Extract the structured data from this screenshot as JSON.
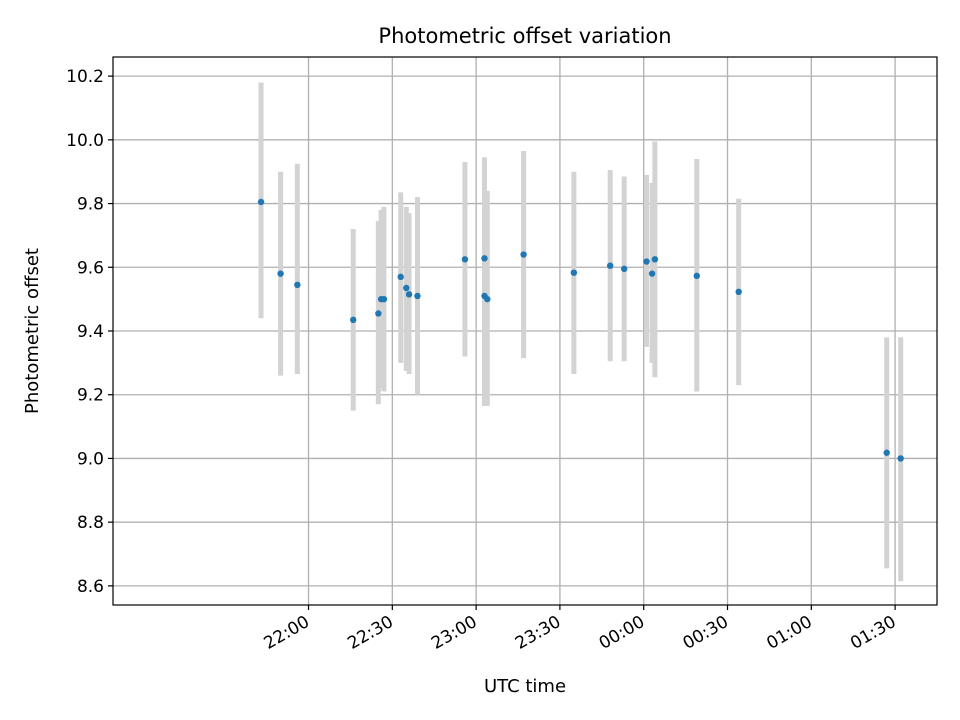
{
  "chart_data": {
    "type": "scatter",
    "title": "Photometric offset variation",
    "xlabel": "UTC time",
    "ylabel": "Photometric offset",
    "grid": true,
    "legend": "none",
    "x_ticks": [
      "22:00",
      "22:30",
      "23:00",
      "23:30",
      "00:00",
      "00:30",
      "01:00",
      "01:30"
    ],
    "y_ticks": [
      "8.6",
      "8.8",
      "9.0",
      "9.2",
      "9.4",
      "9.6",
      "9.8",
      "10.0",
      "10.2"
    ],
    "ylim": [
      8.54,
      10.26
    ],
    "colors": {
      "point": "#1f77b4",
      "errorbar": "#d3d3d3",
      "grid": "#b0b0b0"
    },
    "points": [
      {
        "x": "21:43",
        "y": 9.805,
        "ylow": 9.44,
        "yhigh": 10.18
      },
      {
        "x": "21:50",
        "y": 9.58,
        "ylow": 9.26,
        "yhigh": 9.9
      },
      {
        "x": "21:56",
        "y": 9.545,
        "ylow": 9.265,
        "yhigh": 9.925
      },
      {
        "x": "22:16",
        "y": 9.435,
        "ylow": 9.15,
        "yhigh": 9.72
      },
      {
        "x": "22:25",
        "y": 9.455,
        "ylow": 9.17,
        "yhigh": 9.745
      },
      {
        "x": "22:26",
        "y": 9.5,
        "ylow": 9.22,
        "yhigh": 9.78
      },
      {
        "x": "22:27",
        "y": 9.5,
        "ylow": 9.21,
        "yhigh": 9.79
      },
      {
        "x": "22:33",
        "y": 9.57,
        "ylow": 9.3,
        "yhigh": 9.835
      },
      {
        "x": "22:35",
        "y": 9.535,
        "ylow": 9.275,
        "yhigh": 9.79
      },
      {
        "x": "22:36",
        "y": 9.515,
        "ylow": 9.265,
        "yhigh": 9.77
      },
      {
        "x": "22:39",
        "y": 9.51,
        "ylow": 9.2,
        "yhigh": 9.82
      },
      {
        "x": "22:56",
        "y": 9.625,
        "ylow": 9.32,
        "yhigh": 9.93
      },
      {
        "x": "23:03",
        "y": 9.628,
        "ylow": 9.31,
        "yhigh": 9.945
      },
      {
        "x": "23:03",
        "y": 9.51,
        "ylow": 9.165,
        "yhigh": 9.855
      },
      {
        "x": "23:04",
        "y": 9.5,
        "ylow": 9.165,
        "yhigh": 9.84
      },
      {
        "x": "23:17",
        "y": 9.64,
        "ylow": 9.315,
        "yhigh": 9.965
      },
      {
        "x": "23:35",
        "y": 9.583,
        "ylow": 9.265,
        "yhigh": 9.9
      },
      {
        "x": "23:48",
        "y": 9.605,
        "ylow": 9.305,
        "yhigh": 9.905
      },
      {
        "x": "23:53",
        "y": 9.595,
        "ylow": 9.305,
        "yhigh": 9.885
      },
      {
        "x": "00:01",
        "y": 9.618,
        "ylow": 9.35,
        "yhigh": 9.89
      },
      {
        "x": "00:03",
        "y": 9.58,
        "ylow": 9.3,
        "yhigh": 9.865
      },
      {
        "x": "00:04",
        "y": 9.625,
        "ylow": 9.255,
        "yhigh": 9.995
      },
      {
        "x": "00:19",
        "y": 9.573,
        "ylow": 9.21,
        "yhigh": 9.94
      },
      {
        "x": "00:34",
        "y": 9.523,
        "ylow": 9.23,
        "yhigh": 9.815
      },
      {
        "x": "01:27",
        "y": 9.018,
        "ylow": 8.655,
        "yhigh": 9.38
      },
      {
        "x": "01:32",
        "y": 9.0,
        "ylow": 8.615,
        "yhigh": 9.38
      }
    ]
  }
}
